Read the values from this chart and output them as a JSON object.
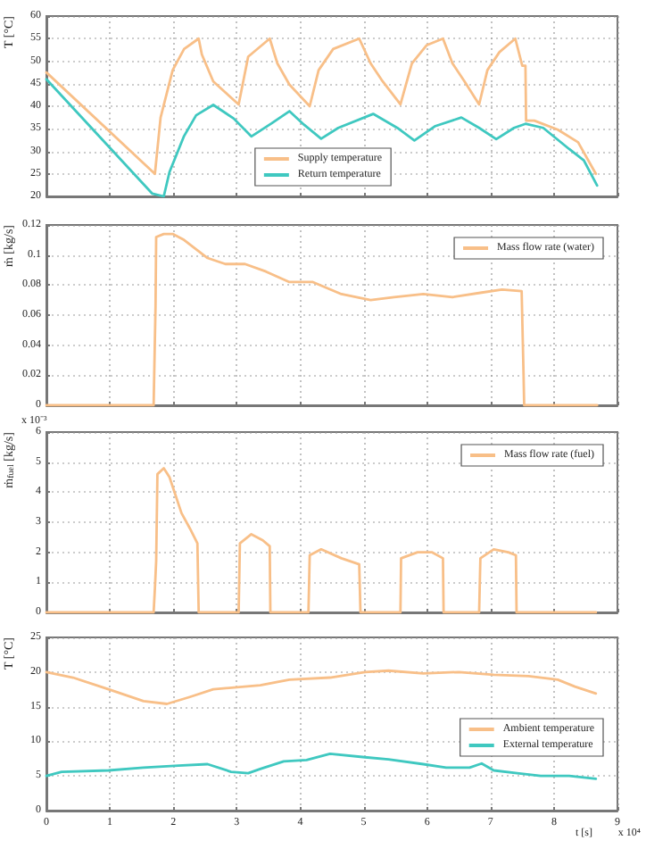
{
  "chart_data": [
    {
      "type": "line",
      "ylabel": "T [°C]",
      "xlim": [
        0,
        9
      ],
      "xticks": [
        0,
        1,
        2,
        3,
        4,
        5,
        6,
        7,
        8,
        9
      ],
      "ylim": [
        20,
        60
      ],
      "yticks": [
        20,
        25,
        30,
        35,
        40,
        45,
        50,
        55,
        60
      ],
      "tick_labels": "y",
      "grid": true,
      "legend": "bottom",
      "marker": "none",
      "line_style": "solid",
      "series": [
        {
          "name": "Supply temperature",
          "color": "#f8bf88",
          "x": [
            0,
            1.71,
            1.8,
            1.99,
            2.17,
            2.4,
            2.45,
            2.63,
            3.03,
            3.18,
            3.52,
            3.64,
            3.83,
            4.15,
            4.29,
            4.52,
            4.93,
            5.11,
            5.3,
            5.58,
            5.76,
            5.99,
            6.25,
            6.4,
            6.59,
            6.82,
            6.95,
            7.14,
            7.39,
            7.5,
            7.55,
            7.56,
            7.69,
            8.06,
            8.38,
            8.66
          ],
          "values": [
            47.5,
            25,
            37.5,
            48,
            52.7,
            55,
            51.5,
            45.5,
            40.4,
            51,
            55,
            49.5,
            44.8,
            40,
            48,
            52.7,
            55,
            49.5,
            45.5,
            40.4,
            49.5,
            53.5,
            55,
            49.5,
            45.5,
            40.4,
            48,
            52,
            55,
            49,
            49,
            36.8,
            36.8,
            34.8,
            32,
            25
          ]
        },
        {
          "name": "Return temperature",
          "color": "#3fc8c0",
          "x": [
            0,
            1.67,
            1.85,
            1.94,
            2.17,
            2.36,
            2.63,
            2.95,
            3.23,
            3.55,
            3.83,
            4.06,
            4.33,
            4.6,
            5.15,
            5.53,
            5.8,
            6.13,
            6.54,
            6.82,
            7.09,
            7.37,
            7.55,
            7.83,
            8.24,
            8.47,
            8.68
          ],
          "values": [
            46,
            20.6,
            20,
            25.4,
            33.4,
            38,
            40.3,
            37.3,
            33.3,
            36.2,
            38.9,
            35.9,
            32.8,
            35.2,
            38.3,
            35.2,
            32.4,
            35.6,
            37.5,
            35.2,
            32.7,
            35.2,
            36.1,
            35.2,
            30.5,
            28,
            22.4
          ]
        }
      ]
    },
    {
      "type": "line",
      "ylabel": "ṁ [kg/s]",
      "xlim": [
        0,
        9
      ],
      "xticks": [
        0,
        1,
        2,
        3,
        4,
        5,
        6,
        7,
        8,
        9
      ],
      "ylim": [
        0,
        0.12
      ],
      "yticks": [
        0,
        0.02,
        0.04,
        0.06,
        0.08,
        0.1,
        0.12
      ],
      "tick_labels": "y",
      "grid": true,
      "legend": "top right",
      "marker": "none",
      "line_style": "solid",
      "series": [
        {
          "name": "Mass flow rate (water)",
          "color": "#f8bf88",
          "x": [
            0,
            1.69,
            1.72,
            1.73,
            1.85,
            1.99,
            2.17,
            2.54,
            2.82,
            3.13,
            3.46,
            3.83,
            4.2,
            4.65,
            5.11,
            5.48,
            5.94,
            6.4,
            6.86,
            7.18,
            7.49,
            7.52,
            7.53,
            8.68
          ],
          "values": [
            0,
            0,
            0.066,
            0.112,
            0.114,
            0.114,
            0.11,
            0.098,
            0.094,
            0.094,
            0.089,
            0.082,
            0.082,
            0.074,
            0.07,
            0.072,
            0.074,
            0.072,
            0.075,
            0.077,
            0.076,
            0.021,
            0,
            0
          ]
        }
      ]
    },
    {
      "type": "line",
      "ylabel": "ṁ$_{fuel}$ [kg/s]",
      "annotations": [
        "x 10⁻³"
      ],
      "xlim": [
        0,
        9
      ],
      "xticks": [
        0,
        1,
        2,
        3,
        4,
        5,
        6,
        7,
        8,
        9
      ],
      "ylim": [
        0,
        6
      ],
      "yticks": [
        0,
        1,
        2,
        3,
        4,
        5,
        6
      ],
      "tick_labels": "y",
      "grid": true,
      "legend": "top right",
      "marker": "none",
      "line_style": "solid",
      "series": [
        {
          "name": "Mass flow rate (fuel)",
          "color": "#f8bf88",
          "x": [
            0,
            1.69,
            1.71,
            1.73,
            1.75,
            1.85,
            1.94,
            2.13,
            2.26,
            2.38,
            2.4,
            3.03,
            3.05,
            3.23,
            3.41,
            3.52,
            3.53,
            4.13,
            4.15,
            4.33,
            4.65,
            4.93,
            4.95,
            5.58,
            5.59,
            5.85,
            6.08,
            6.25,
            6.26,
            6.82,
            6.84,
            7.05,
            7.28,
            7.4,
            7.41,
            8.66
          ],
          "values": [
            0,
            0,
            0.8,
            1.7,
            4.6,
            4.8,
            4.5,
            3.3,
            2.8,
            2.3,
            0,
            0,
            2.3,
            2.6,
            2.4,
            2.2,
            0,
            0,
            1.9,
            2.1,
            1.8,
            1.6,
            0,
            0,
            1.8,
            2,
            2,
            1.8,
            0,
            0,
            1.8,
            2.1,
            2,
            1.9,
            0,
            0
          ]
        }
      ]
    },
    {
      "type": "line",
      "ylabel": "T [°C]",
      "xlabel": "t [s]",
      "annotations": [
        "x 10⁴"
      ],
      "xlim": [
        0,
        9
      ],
      "xticks": [
        0,
        1,
        2,
        3,
        4,
        5,
        6,
        7,
        8,
        9
      ],
      "ylim": [
        0,
        25
      ],
      "yticks": [
        0,
        5,
        10,
        15,
        20,
        25
      ],
      "grid": true,
      "legend": "right",
      "marker": "none",
      "line_style": "solid",
      "series": [
        {
          "name": "Ambient temperature",
          "color": "#f8bf88",
          "x": [
            0,
            0.42,
            0.98,
            1.53,
            1.9,
            2.26,
            2.63,
            3.0,
            3.37,
            3.83,
            4.47,
            5.02,
            5.39,
            5.94,
            6.5,
            7.05,
            7.6,
            8.06,
            8.33,
            8.66
          ],
          "values": [
            20,
            19.2,
            17.5,
            15.8,
            15.4,
            16.4,
            17.5,
            17.8,
            18.1,
            18.9,
            19.2,
            20,
            20.2,
            19.8,
            20,
            19.6,
            19.4,
            18.9,
            17.9,
            16.9
          ]
        },
        {
          "name": "External temperature",
          "color": "#3fc8c0",
          "x": [
            0,
            0.24,
            0.98,
            1.53,
            2.08,
            2.54,
            2.91,
            3.18,
            3.37,
            3.74,
            4.1,
            4.47,
            5.02,
            5.39,
            5.94,
            6.3,
            6.67,
            6.86,
            7.05,
            7.42,
            7.79,
            8.24,
            8.66
          ],
          "values": [
            5,
            5.6,
            5.8,
            6.2,
            6.5,
            6.7,
            5.6,
            5.4,
            6,
            7.1,
            7.3,
            8.2,
            7.7,
            7.4,
            6.7,
            6.2,
            6.2,
            6.8,
            5.8,
            5.4,
            5,
            5,
            4.6
          ]
        }
      ]
    }
  ]
}
